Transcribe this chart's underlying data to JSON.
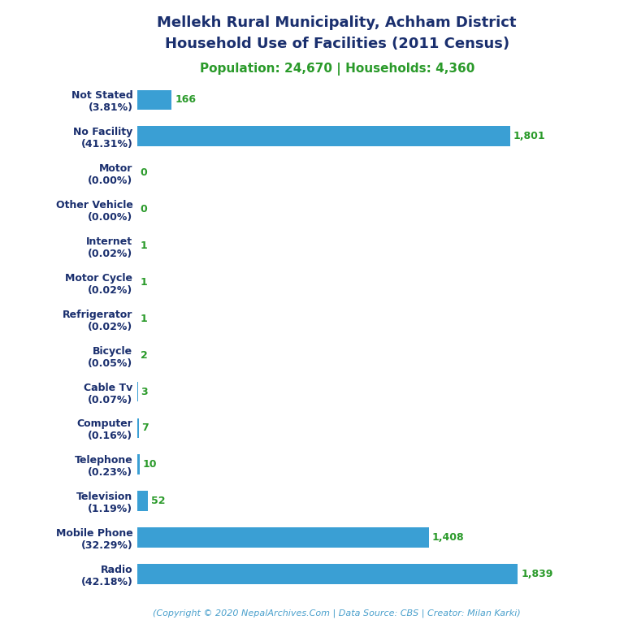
{
  "title_line1": "Mellekh Rural Municipality, Achham District",
  "title_line2": "Household Use of Facilities (2011 Census)",
  "subtitle": "Population: 24,670 | Households: 4,360",
  "categories": [
    "Not Stated\n(3.81%)",
    "No Facility\n(41.31%)",
    "Motor\n(0.00%)",
    "Other Vehicle\n(0.00%)",
    "Internet\n(0.02%)",
    "Motor Cycle\n(0.02%)",
    "Refrigerator\n(0.02%)",
    "Bicycle\n(0.05%)",
    "Cable Tv\n(0.07%)",
    "Computer\n(0.16%)",
    "Telephone\n(0.23%)",
    "Television\n(1.19%)",
    "Mobile Phone\n(32.29%)",
    "Radio\n(42.18%)"
  ],
  "values": [
    166,
    1801,
    0,
    0,
    1,
    1,
    1,
    2,
    3,
    7,
    10,
    52,
    1408,
    1839
  ],
  "bar_color": "#3a9fd4",
  "title_color": "#1a2f6e",
  "subtitle_color": "#2a9a2a",
  "value_color": "#2a9a2a",
  "footer_color": "#4aa0cc",
  "footer": "(Copyright © 2020 NepalArchives.Com | Data Source: CBS | Creator: Milan Karki)",
  "background_color": "#ffffff",
  "xlim": [
    0,
    2050
  ]
}
